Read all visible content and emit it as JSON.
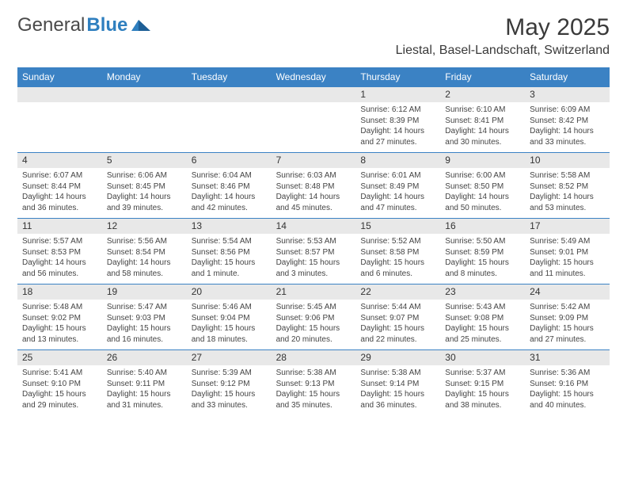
{
  "brand": {
    "name_a": "General",
    "name_b": "Blue"
  },
  "title": "May 2025",
  "location": "Liestal, Basel-Landschaft, Switzerland",
  "colors": {
    "accent": "#3b82c4",
    "strip": "#e8e8e8",
    "divider": "#3b82c4",
    "text": "#222222",
    "muted": "#444444",
    "background": "#ffffff"
  },
  "typography": {
    "title_fontsize": 30,
    "location_fontsize": 16,
    "dow_fontsize": 12,
    "daynum_fontsize": 12,
    "body_fontsize": 10
  },
  "days_of_week": [
    "Sunday",
    "Monday",
    "Tuesday",
    "Wednesday",
    "Thursday",
    "Friday",
    "Saturday"
  ],
  "weeks": [
    [
      {
        "n": "",
        "sunrise": "",
        "sunset": "",
        "daylight": ""
      },
      {
        "n": "",
        "sunrise": "",
        "sunset": "",
        "daylight": ""
      },
      {
        "n": "",
        "sunrise": "",
        "sunset": "",
        "daylight": ""
      },
      {
        "n": "",
        "sunrise": "",
        "sunset": "",
        "daylight": ""
      },
      {
        "n": "1",
        "sunrise": "Sunrise: 6:12 AM",
        "sunset": "Sunset: 8:39 PM",
        "daylight": "Daylight: 14 hours and 27 minutes."
      },
      {
        "n": "2",
        "sunrise": "Sunrise: 6:10 AM",
        "sunset": "Sunset: 8:41 PM",
        "daylight": "Daylight: 14 hours and 30 minutes."
      },
      {
        "n": "3",
        "sunrise": "Sunrise: 6:09 AM",
        "sunset": "Sunset: 8:42 PM",
        "daylight": "Daylight: 14 hours and 33 minutes."
      }
    ],
    [
      {
        "n": "4",
        "sunrise": "Sunrise: 6:07 AM",
        "sunset": "Sunset: 8:44 PM",
        "daylight": "Daylight: 14 hours and 36 minutes."
      },
      {
        "n": "5",
        "sunrise": "Sunrise: 6:06 AM",
        "sunset": "Sunset: 8:45 PM",
        "daylight": "Daylight: 14 hours and 39 minutes."
      },
      {
        "n": "6",
        "sunrise": "Sunrise: 6:04 AM",
        "sunset": "Sunset: 8:46 PM",
        "daylight": "Daylight: 14 hours and 42 minutes."
      },
      {
        "n": "7",
        "sunrise": "Sunrise: 6:03 AM",
        "sunset": "Sunset: 8:48 PM",
        "daylight": "Daylight: 14 hours and 45 minutes."
      },
      {
        "n": "8",
        "sunrise": "Sunrise: 6:01 AM",
        "sunset": "Sunset: 8:49 PM",
        "daylight": "Daylight: 14 hours and 47 minutes."
      },
      {
        "n": "9",
        "sunrise": "Sunrise: 6:00 AM",
        "sunset": "Sunset: 8:50 PM",
        "daylight": "Daylight: 14 hours and 50 minutes."
      },
      {
        "n": "10",
        "sunrise": "Sunrise: 5:58 AM",
        "sunset": "Sunset: 8:52 PM",
        "daylight": "Daylight: 14 hours and 53 minutes."
      }
    ],
    [
      {
        "n": "11",
        "sunrise": "Sunrise: 5:57 AM",
        "sunset": "Sunset: 8:53 PM",
        "daylight": "Daylight: 14 hours and 56 minutes."
      },
      {
        "n": "12",
        "sunrise": "Sunrise: 5:56 AM",
        "sunset": "Sunset: 8:54 PM",
        "daylight": "Daylight: 14 hours and 58 minutes."
      },
      {
        "n": "13",
        "sunrise": "Sunrise: 5:54 AM",
        "sunset": "Sunset: 8:56 PM",
        "daylight": "Daylight: 15 hours and 1 minute."
      },
      {
        "n": "14",
        "sunrise": "Sunrise: 5:53 AM",
        "sunset": "Sunset: 8:57 PM",
        "daylight": "Daylight: 15 hours and 3 minutes."
      },
      {
        "n": "15",
        "sunrise": "Sunrise: 5:52 AM",
        "sunset": "Sunset: 8:58 PM",
        "daylight": "Daylight: 15 hours and 6 minutes."
      },
      {
        "n": "16",
        "sunrise": "Sunrise: 5:50 AM",
        "sunset": "Sunset: 8:59 PM",
        "daylight": "Daylight: 15 hours and 8 minutes."
      },
      {
        "n": "17",
        "sunrise": "Sunrise: 5:49 AM",
        "sunset": "Sunset: 9:01 PM",
        "daylight": "Daylight: 15 hours and 11 minutes."
      }
    ],
    [
      {
        "n": "18",
        "sunrise": "Sunrise: 5:48 AM",
        "sunset": "Sunset: 9:02 PM",
        "daylight": "Daylight: 15 hours and 13 minutes."
      },
      {
        "n": "19",
        "sunrise": "Sunrise: 5:47 AM",
        "sunset": "Sunset: 9:03 PM",
        "daylight": "Daylight: 15 hours and 16 minutes."
      },
      {
        "n": "20",
        "sunrise": "Sunrise: 5:46 AM",
        "sunset": "Sunset: 9:04 PM",
        "daylight": "Daylight: 15 hours and 18 minutes."
      },
      {
        "n": "21",
        "sunrise": "Sunrise: 5:45 AM",
        "sunset": "Sunset: 9:06 PM",
        "daylight": "Daylight: 15 hours and 20 minutes."
      },
      {
        "n": "22",
        "sunrise": "Sunrise: 5:44 AM",
        "sunset": "Sunset: 9:07 PM",
        "daylight": "Daylight: 15 hours and 22 minutes."
      },
      {
        "n": "23",
        "sunrise": "Sunrise: 5:43 AM",
        "sunset": "Sunset: 9:08 PM",
        "daylight": "Daylight: 15 hours and 25 minutes."
      },
      {
        "n": "24",
        "sunrise": "Sunrise: 5:42 AM",
        "sunset": "Sunset: 9:09 PM",
        "daylight": "Daylight: 15 hours and 27 minutes."
      }
    ],
    [
      {
        "n": "25",
        "sunrise": "Sunrise: 5:41 AM",
        "sunset": "Sunset: 9:10 PM",
        "daylight": "Daylight: 15 hours and 29 minutes."
      },
      {
        "n": "26",
        "sunrise": "Sunrise: 5:40 AM",
        "sunset": "Sunset: 9:11 PM",
        "daylight": "Daylight: 15 hours and 31 minutes."
      },
      {
        "n": "27",
        "sunrise": "Sunrise: 5:39 AM",
        "sunset": "Sunset: 9:12 PM",
        "daylight": "Daylight: 15 hours and 33 minutes."
      },
      {
        "n": "28",
        "sunrise": "Sunrise: 5:38 AM",
        "sunset": "Sunset: 9:13 PM",
        "daylight": "Daylight: 15 hours and 35 minutes."
      },
      {
        "n": "29",
        "sunrise": "Sunrise: 5:38 AM",
        "sunset": "Sunset: 9:14 PM",
        "daylight": "Daylight: 15 hours and 36 minutes."
      },
      {
        "n": "30",
        "sunrise": "Sunrise: 5:37 AM",
        "sunset": "Sunset: 9:15 PM",
        "daylight": "Daylight: 15 hours and 38 minutes."
      },
      {
        "n": "31",
        "sunrise": "Sunrise: 5:36 AM",
        "sunset": "Sunset: 9:16 PM",
        "daylight": "Daylight: 15 hours and 40 minutes."
      }
    ]
  ]
}
